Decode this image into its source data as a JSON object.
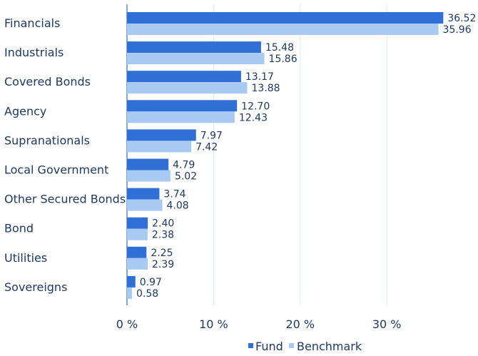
{
  "chart_data": {
    "type": "bar",
    "orientation": "horizontal",
    "categories": [
      "Financials",
      "Industrials",
      "Covered Bonds",
      "Agency",
      "Supranationals",
      "Local Government",
      "Other Secured Bonds",
      "Bond",
      "Utilities",
      "Sovereigns"
    ],
    "series": [
      {
        "name": "Fund",
        "values": [
          36.52,
          15.48,
          13.17,
          12.7,
          7.97,
          4.79,
          3.74,
          2.4,
          2.25,
          0.97
        ],
        "labels": [
          "36.52",
          "15.48",
          "13.17",
          "12.70",
          "7.97",
          "4.79",
          "3.74",
          "2.40",
          "2.25",
          "0.97"
        ]
      },
      {
        "name": "Benchmark",
        "values": [
          35.96,
          15.86,
          13.88,
          12.43,
          7.42,
          5.02,
          4.08,
          2.38,
          2.39,
          0.58
        ],
        "labels": [
          "35.96",
          "15.86",
          "13.88",
          "12.43",
          "7.42",
          "5.02",
          "4.08",
          "2.38",
          "2.39",
          "0.58"
        ]
      }
    ],
    "xlim": [
      0,
      40
    ],
    "xticks": [
      0,
      10,
      20,
      30
    ],
    "xtick_labels": [
      "0 %",
      "10 %",
      "20 %",
      "30 %"
    ],
    "grid": true,
    "legend": "bottom",
    "colors": {
      "Fund": "#2f6fd6",
      "Benchmark": "#a9cbf3",
      "text": "#1f3864",
      "grid": "#dfe7f3"
    }
  }
}
